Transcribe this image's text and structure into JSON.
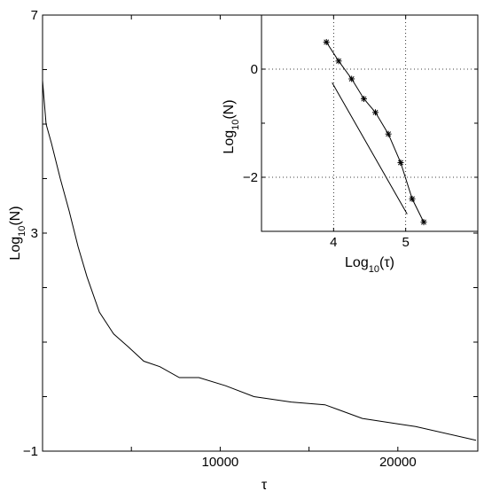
{
  "chart_data": [
    {
      "type": "line",
      "title": "",
      "xlabel": "τ",
      "ylabel": {
        "base": "Log",
        "sub": "10",
        "arg": "(N)"
      },
      "xlim": [
        0,
        24500
      ],
      "ylim": [
        -1,
        7
      ],
      "xticks": [
        10000,
        20000
      ],
      "xtick_labels": [
        "10000",
        "20000"
      ],
      "yticks": [
        -1,
        3,
        7
      ],
      "ytick_labels": [
        "−1",
        "3",
        "7"
      ],
      "grid": false,
      "x": [
        0,
        200,
        500,
        1000,
        1500,
        2000,
        2500,
        3200,
        4000,
        4800,
        5200,
        5700,
        6600,
        7700,
        8800,
        10300,
        11900,
        14000,
        15900,
        18000,
        20000,
        21000,
        24400
      ],
      "y": [
        5.8,
        5.0,
        4.65,
        4.0,
        3.4,
        2.75,
        2.2,
        1.55,
        1.15,
        0.92,
        0.8,
        0.65,
        0.55,
        0.35,
        0.35,
        0.2,
        0.0,
        -0.1,
        -0.15,
        -0.4,
        -0.5,
        -0.55,
        -0.8
      ]
    },
    {
      "type": "line",
      "title": "",
      "xlabel": {
        "base": "Log",
        "sub": "10",
        "arg": "(τ)"
      },
      "ylabel": {
        "base": "Log",
        "sub": "10",
        "arg": "(N)"
      },
      "xlim": [
        3.0,
        6.0
      ],
      "ylim": [
        -3.0,
        1.0
      ],
      "xticks": [
        4,
        5
      ],
      "xtick_labels": [
        "4",
        "5"
      ],
      "yticks": [
        0,
        -2
      ],
      "ytick_labels": [
        "0",
        "−2"
      ],
      "grid": true,
      "series": [
        {
          "marker": "*",
          "x": [
            3.9,
            4.07,
            4.25,
            4.42,
            4.58,
            4.76,
            4.93,
            5.09,
            5.25
          ],
          "y": [
            0.5,
            0.15,
            -0.18,
            -0.55,
            -0.8,
            -1.2,
            -1.73,
            -2.4,
            -2.83
          ]
        },
        {
          "marker": "none",
          "x": [
            3.98,
            5.02
          ],
          "y": [
            -0.25,
            -2.68
          ]
        }
      ]
    }
  ]
}
